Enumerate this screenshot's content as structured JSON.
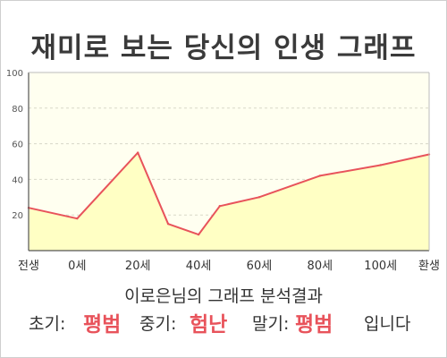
{
  "title": "재미로 보는 당신의 인생 그래프",
  "subtitle": "이로은님의 그래프 분석결과",
  "summary": {
    "early_label": "초기:",
    "early_value": "평범",
    "mid_label": "중기:",
    "mid_value": "험난",
    "late_label": "말기:",
    "late_value": "평범",
    "ending": "입니다"
  },
  "colors": {
    "line": "#e8535b",
    "fill": "#ffffc4",
    "plot_background": "#fffff0",
    "accent_text": "#e8535b"
  },
  "chart_data": {
    "type": "area",
    "title": "재미로 보는 당신의 인생 그래프",
    "x_tick_labels": [
      "전생",
      "0세",
      "20세",
      "40세",
      "60세",
      "80세",
      "100세",
      "환생"
    ],
    "x": [
      -16,
      0,
      20,
      30,
      40,
      47,
      60,
      80,
      100,
      116
    ],
    "values": [
      24,
      18,
      55,
      15,
      9,
      25,
      30,
      42,
      48,
      54
    ],
    "ylim": [
      0,
      100
    ],
    "y_ticks": [
      20,
      40,
      60,
      80,
      100
    ],
    "grid": "horizontal dashed",
    "legend": "none"
  }
}
